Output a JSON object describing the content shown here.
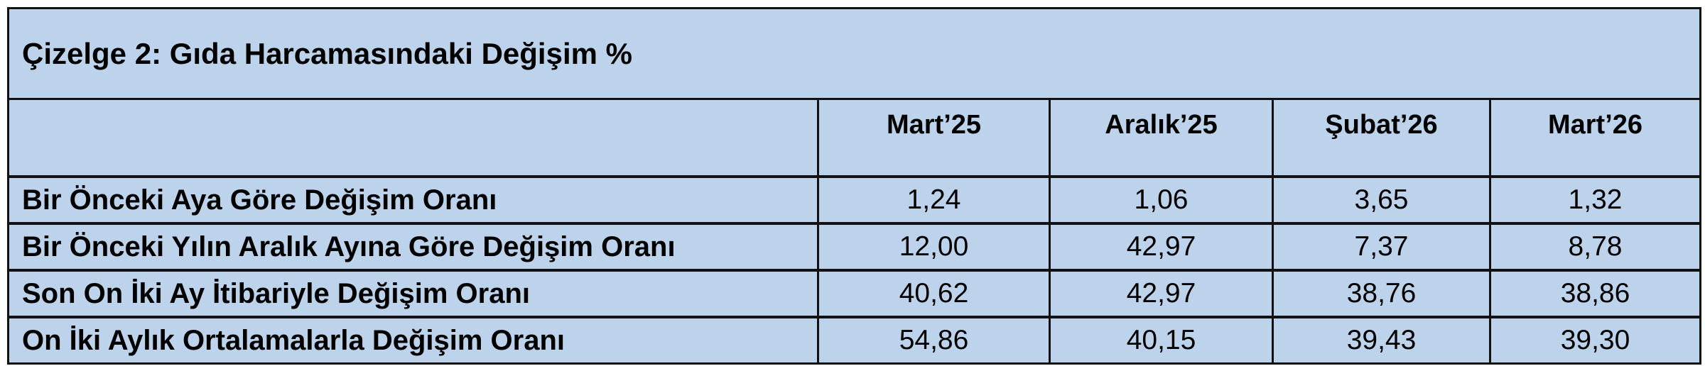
{
  "table": {
    "title": "Çizelge 2: Gıda Harcamasındaki Değişim %",
    "columns": [
      "",
      "Mart’25",
      "Aralık’25",
      "Şubat’26",
      "Mart’26"
    ],
    "rows": [
      {
        "label": "Bir Önceki Aya Göre Değişim Oranı",
        "values": [
          "1,24",
          "1,06",
          "3,65",
          "1,32"
        ]
      },
      {
        "label": "Bir Önceki Yılın Aralık Ayına Göre Değişim Oranı",
        "values": [
          "12,00",
          "42,97",
          "7,37",
          "8,78"
        ]
      },
      {
        "label": "Son On İki Ay İtibariyle Değişim Oranı",
        "values": [
          "40,62",
          "42,97",
          "38,76",
          "38,86"
        ]
      },
      {
        "label": "On İki Aylık Ortalamalarla Değişim Oranı",
        "values": [
          "54,86",
          "40,15",
          "39,43",
          "39,30"
        ]
      }
    ],
    "background_color": "#bcd3eb",
    "border_color": "#111111"
  }
}
